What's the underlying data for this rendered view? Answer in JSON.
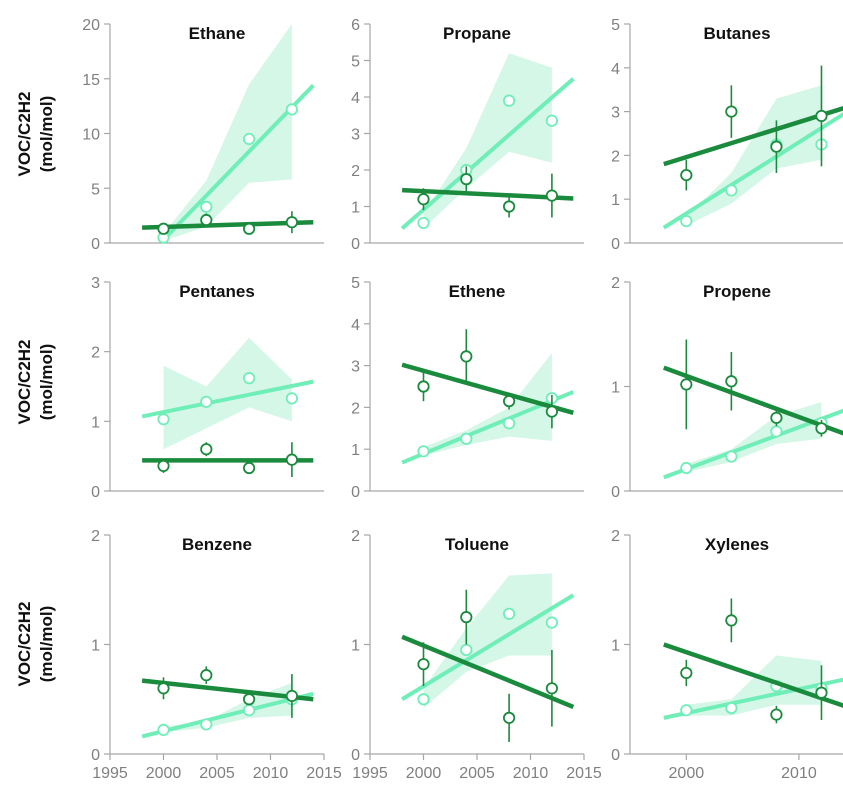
{
  "colors": {
    "light": "#6FEEB8",
    "light_band": "#CDF6E4",
    "dark": "#1A8A3D",
    "axis": "#A6A6A6",
    "tick_text": "#808080"
  },
  "row_labels": [
    {
      "line1": "VOC/C2H2",
      "line2": "(mol/mol)"
    },
    {
      "line1": "VOC/C2H2",
      "line2": "(mol/mol)"
    },
    {
      "line1": "VOC/C2H2",
      "line2": "(mol/mol)"
    }
  ],
  "chart_data": [
    {
      "type": "scatter",
      "title": "Ethane",
      "xlim": [
        1995,
        2015
      ],
      "ylim": [
        0,
        20
      ],
      "yticks": [
        0,
        5,
        10,
        15,
        20
      ],
      "xticks": [],
      "xticklabels": [],
      "series": [
        {
          "color": "light",
          "x": [
            2000,
            2004,
            2008,
            2012
          ],
          "y": [
            0.5,
            3.3,
            9.5,
            12.2
          ],
          "band_x": [
            2000,
            2004,
            2008,
            2012
          ],
          "band_lo": [
            0.2,
            1.5,
            5.5,
            5.8
          ],
          "band_hi": [
            0.9,
            5.7,
            14.5,
            20
          ],
          "fit_x": [
            2000,
            2014
          ],
          "fit_y": [
            0.3,
            14.4
          ]
        },
        {
          "color": "dark",
          "x": [
            2000,
            2004,
            2008,
            2012
          ],
          "y": [
            1.3,
            2.1,
            1.3,
            1.9
          ],
          "err": [
            0.3,
            0.6,
            0.3,
            1.0
          ],
          "fit_x": [
            1998,
            2014
          ],
          "fit_y": [
            1.4,
            1.9
          ]
        }
      ]
    },
    {
      "type": "scatter",
      "title": "Propane",
      "xlim": [
        1995,
        2015
      ],
      "ylim": [
        0,
        6
      ],
      "yticks": [
        0,
        1,
        2,
        3,
        4,
        5,
        6
      ],
      "xticks": [],
      "xticklabels": [],
      "series": [
        {
          "color": "light",
          "x": [
            2000,
            2004,
            2008,
            2012
          ],
          "y": [
            0.55,
            2.0,
            3.9,
            3.35
          ],
          "band_x": [
            2000,
            2004,
            2008,
            2012
          ],
          "band_lo": [
            0.4,
            1.5,
            2.5,
            2.2
          ],
          "band_hi": [
            0.8,
            2.6,
            5.2,
            4.8
          ],
          "fit_x": [
            1998,
            2014
          ],
          "fit_y": [
            0.4,
            4.5
          ]
        },
        {
          "color": "dark",
          "x": [
            2000,
            2004,
            2008,
            2012
          ],
          "y": [
            1.2,
            1.75,
            1.0,
            1.3
          ],
          "err": [
            0.3,
            0.35,
            0.3,
            0.6
          ],
          "fit_x": [
            1998,
            2014
          ],
          "fit_y": [
            1.45,
            1.22
          ]
        }
      ]
    },
    {
      "type": "scatter",
      "title": "Butanes",
      "xlim": [
        1995,
        2014
      ],
      "ylim": [
        0,
        5
      ],
      "yticks": [
        0,
        1,
        2,
        3,
        4,
        5
      ],
      "xticks": [],
      "xticklabels": [],
      "series": [
        {
          "color": "light",
          "x": [
            2000,
            2004,
            2008,
            2012
          ],
          "y": [
            0.5,
            1.2,
            2.25,
            2.25
          ],
          "band_x": [
            2000,
            2004,
            2008,
            2012
          ],
          "band_lo": [
            0.4,
            0.9,
            1.7,
            1.9
          ],
          "band_hi": [
            0.6,
            1.6,
            3.3,
            3.6
          ],
          "fit_x": [
            1998,
            2014
          ],
          "fit_y": [
            0.35,
            2.95
          ]
        },
        {
          "color": "dark",
          "x": [
            2000,
            2004,
            2008,
            2012
          ],
          "y": [
            1.55,
            3.0,
            2.2,
            2.9
          ],
          "err": [
            0.35,
            0.6,
            0.6,
            1.15
          ],
          "fit_x": [
            1998,
            2014
          ],
          "fit_y": [
            1.8,
            3.08
          ]
        }
      ]
    },
    {
      "type": "scatter",
      "title": "Pentanes",
      "xlim": [
        1995,
        2015
      ],
      "ylim": [
        0,
        3
      ],
      "yticks": [
        0,
        1,
        2,
        3
      ],
      "xticks": [],
      "xticklabels": [],
      "series": [
        {
          "color": "light",
          "x": [
            2000,
            2004,
            2008,
            2012
          ],
          "y": [
            1.03,
            1.28,
            1.62,
            1.33
          ],
          "band_x": [
            2000,
            2004,
            2008,
            2012
          ],
          "band_lo": [
            0.6,
            0.9,
            1.2,
            1.0
          ],
          "band_hi": [
            1.8,
            1.5,
            2.2,
            1.6
          ],
          "fit_x": [
            1998,
            2014
          ],
          "fit_y": [
            1.07,
            1.57
          ]
        },
        {
          "color": "dark",
          "x": [
            2000,
            2004,
            2008,
            2012
          ],
          "y": [
            0.36,
            0.6,
            0.33,
            0.45
          ],
          "err": [
            0.1,
            0.1,
            0.08,
            0.25
          ],
          "fit_x": [
            1998,
            2014
          ],
          "fit_y": [
            0.44,
            0.44
          ]
        }
      ]
    },
    {
      "type": "scatter",
      "title": "Ethene",
      "xlim": [
        1995,
        2015
      ],
      "ylim": [
        0,
        5
      ],
      "yticks": [
        0,
        1,
        2,
        3,
        4,
        5
      ],
      "xticks": [],
      "xticklabels": [],
      "series": [
        {
          "color": "light",
          "x": [
            2000,
            2004,
            2008,
            2012
          ],
          "y": [
            0.95,
            1.25,
            1.62,
            2.22
          ],
          "band_x": [
            2000,
            2004,
            2008,
            2012
          ],
          "band_lo": [
            0.85,
            1.1,
            1.3,
            1.2
          ],
          "band_hi": [
            1.05,
            1.45,
            2.0,
            3.3
          ],
          "fit_x": [
            1998,
            2014
          ],
          "fit_y": [
            0.68,
            2.37
          ]
        },
        {
          "color": "dark",
          "x": [
            2000,
            2004,
            2008,
            2012
          ],
          "y": [
            2.5,
            3.22,
            2.15,
            1.9
          ],
          "err": [
            0.35,
            0.65,
            0.2,
            0.4
          ],
          "fit_x": [
            1998,
            2014
          ],
          "fit_y": [
            3.02,
            1.87
          ]
        }
      ]
    },
    {
      "type": "scatter",
      "title": "Propene",
      "xlim": [
        1995,
        2014
      ],
      "ylim": [
        0,
        2
      ],
      "yticks": [
        0,
        1,
        2
      ],
      "xticks": [],
      "xticklabels": [],
      "series": [
        {
          "color": "light",
          "x": [
            2000,
            2004,
            2008,
            2012
          ],
          "y": [
            0.22,
            0.33,
            0.57,
            0.65
          ],
          "band_x": [
            2000,
            2004,
            2008,
            2012
          ],
          "band_lo": [
            0.18,
            0.28,
            0.45,
            0.5
          ],
          "band_hi": [
            0.26,
            0.4,
            0.72,
            0.85
          ],
          "fit_x": [
            1998,
            2014
          ],
          "fit_y": [
            0.13,
            0.77
          ]
        },
        {
          "color": "dark",
          "x": [
            2000,
            2004,
            2008,
            2012
          ],
          "y": [
            1.02,
            1.05,
            0.7,
            0.6
          ],
          "err": [
            0.43,
            0.28,
            0.08,
            0.08
          ],
          "fit_x": [
            1998,
            2014
          ],
          "fit_y": [
            1.18,
            0.55
          ]
        }
      ]
    },
    {
      "type": "scatter",
      "title": "Benzene",
      "xlim": [
        1995,
        2015
      ],
      "ylim": [
        0,
        2
      ],
      "yticks": [
        0,
        1,
        2
      ],
      "xticks": [
        1995,
        2000,
        2005,
        2010,
        2015
      ],
      "xticklabels": [
        "1995",
        "2000",
        "2005",
        "2010",
        "2015"
      ],
      "series": [
        {
          "color": "light",
          "x": [
            2000,
            2004,
            2008,
            2012
          ],
          "y": [
            0.22,
            0.27,
            0.4,
            0.5
          ],
          "band_x": [
            2000,
            2004,
            2008,
            2012
          ],
          "band_lo": [
            0.2,
            0.24,
            0.33,
            0.35
          ],
          "band_hi": [
            0.25,
            0.3,
            0.5,
            0.65
          ],
          "fit_x": [
            1998,
            2014
          ],
          "fit_y": [
            0.16,
            0.55
          ]
        },
        {
          "color": "dark",
          "x": [
            2000,
            2004,
            2008,
            2012
          ],
          "y": [
            0.6,
            0.72,
            0.5,
            0.53
          ],
          "err": [
            0.1,
            0.08,
            0.05,
            0.2
          ],
          "fit_x": [
            1998,
            2014
          ],
          "fit_y": [
            0.67,
            0.5
          ]
        }
      ]
    },
    {
      "type": "scatter",
      "title": "Toluene",
      "xlim": [
        1995,
        2015
      ],
      "ylim": [
        0,
        2
      ],
      "yticks": [
        0,
        1,
        2
      ],
      "xticks": [
        1995,
        2000,
        2005,
        2010,
        2015
      ],
      "xticklabels": [
        "1995",
        "2000",
        "2005",
        "2010",
        "2015"
      ],
      "series": [
        {
          "color": "light",
          "x": [
            2000,
            2004,
            2008,
            2012
          ],
          "y": [
            0.5,
            0.95,
            1.28,
            1.2
          ],
          "band_x": [
            2000,
            2004,
            2008,
            2012
          ],
          "band_lo": [
            0.42,
            0.75,
            0.9,
            0.9
          ],
          "band_hi": [
            0.6,
            1.15,
            1.63,
            1.65
          ],
          "fit_x": [
            1998,
            2014
          ],
          "fit_y": [
            0.5,
            1.45
          ]
        },
        {
          "color": "dark",
          "x": [
            2000,
            2004,
            2008,
            2012
          ],
          "y": [
            0.82,
            1.25,
            0.33,
            0.6
          ],
          "err": [
            0.2,
            0.25,
            0.22,
            0.35
          ],
          "fit_x": [
            1998,
            2014
          ],
          "fit_y": [
            1.07,
            0.43
          ]
        }
      ]
    },
    {
      "type": "scatter",
      "title": "Xylenes",
      "xlim": [
        1995,
        2014
      ],
      "ylim": [
        0,
        2
      ],
      "yticks": [
        0,
        1,
        2
      ],
      "xticks": [
        2000,
        2010
      ],
      "xticklabels": [
        "2000",
        "2010"
      ],
      "series": [
        {
          "color": "light",
          "x": [
            2000,
            2004,
            2008,
            2012
          ],
          "y": [
            0.4,
            0.42,
            0.62,
            0.6
          ],
          "band_x": [
            2000,
            2004,
            2008,
            2012
          ],
          "band_lo": [
            0.35,
            0.35,
            0.45,
            0.45
          ],
          "band_hi": [
            0.45,
            0.5,
            0.9,
            0.85
          ],
          "fit_x": [
            1998,
            2014
          ],
          "fit_y": [
            0.33,
            0.68
          ]
        },
        {
          "color": "dark",
          "x": [
            2000,
            2004,
            2008,
            2012
          ],
          "y": [
            0.74,
            1.22,
            0.36,
            0.56
          ],
          "err": [
            0.12,
            0.2,
            0.08,
            0.25
          ],
          "fit_x": [
            1998,
            2014
          ],
          "fit_y": [
            1.0,
            0.44
          ]
        }
      ]
    }
  ]
}
